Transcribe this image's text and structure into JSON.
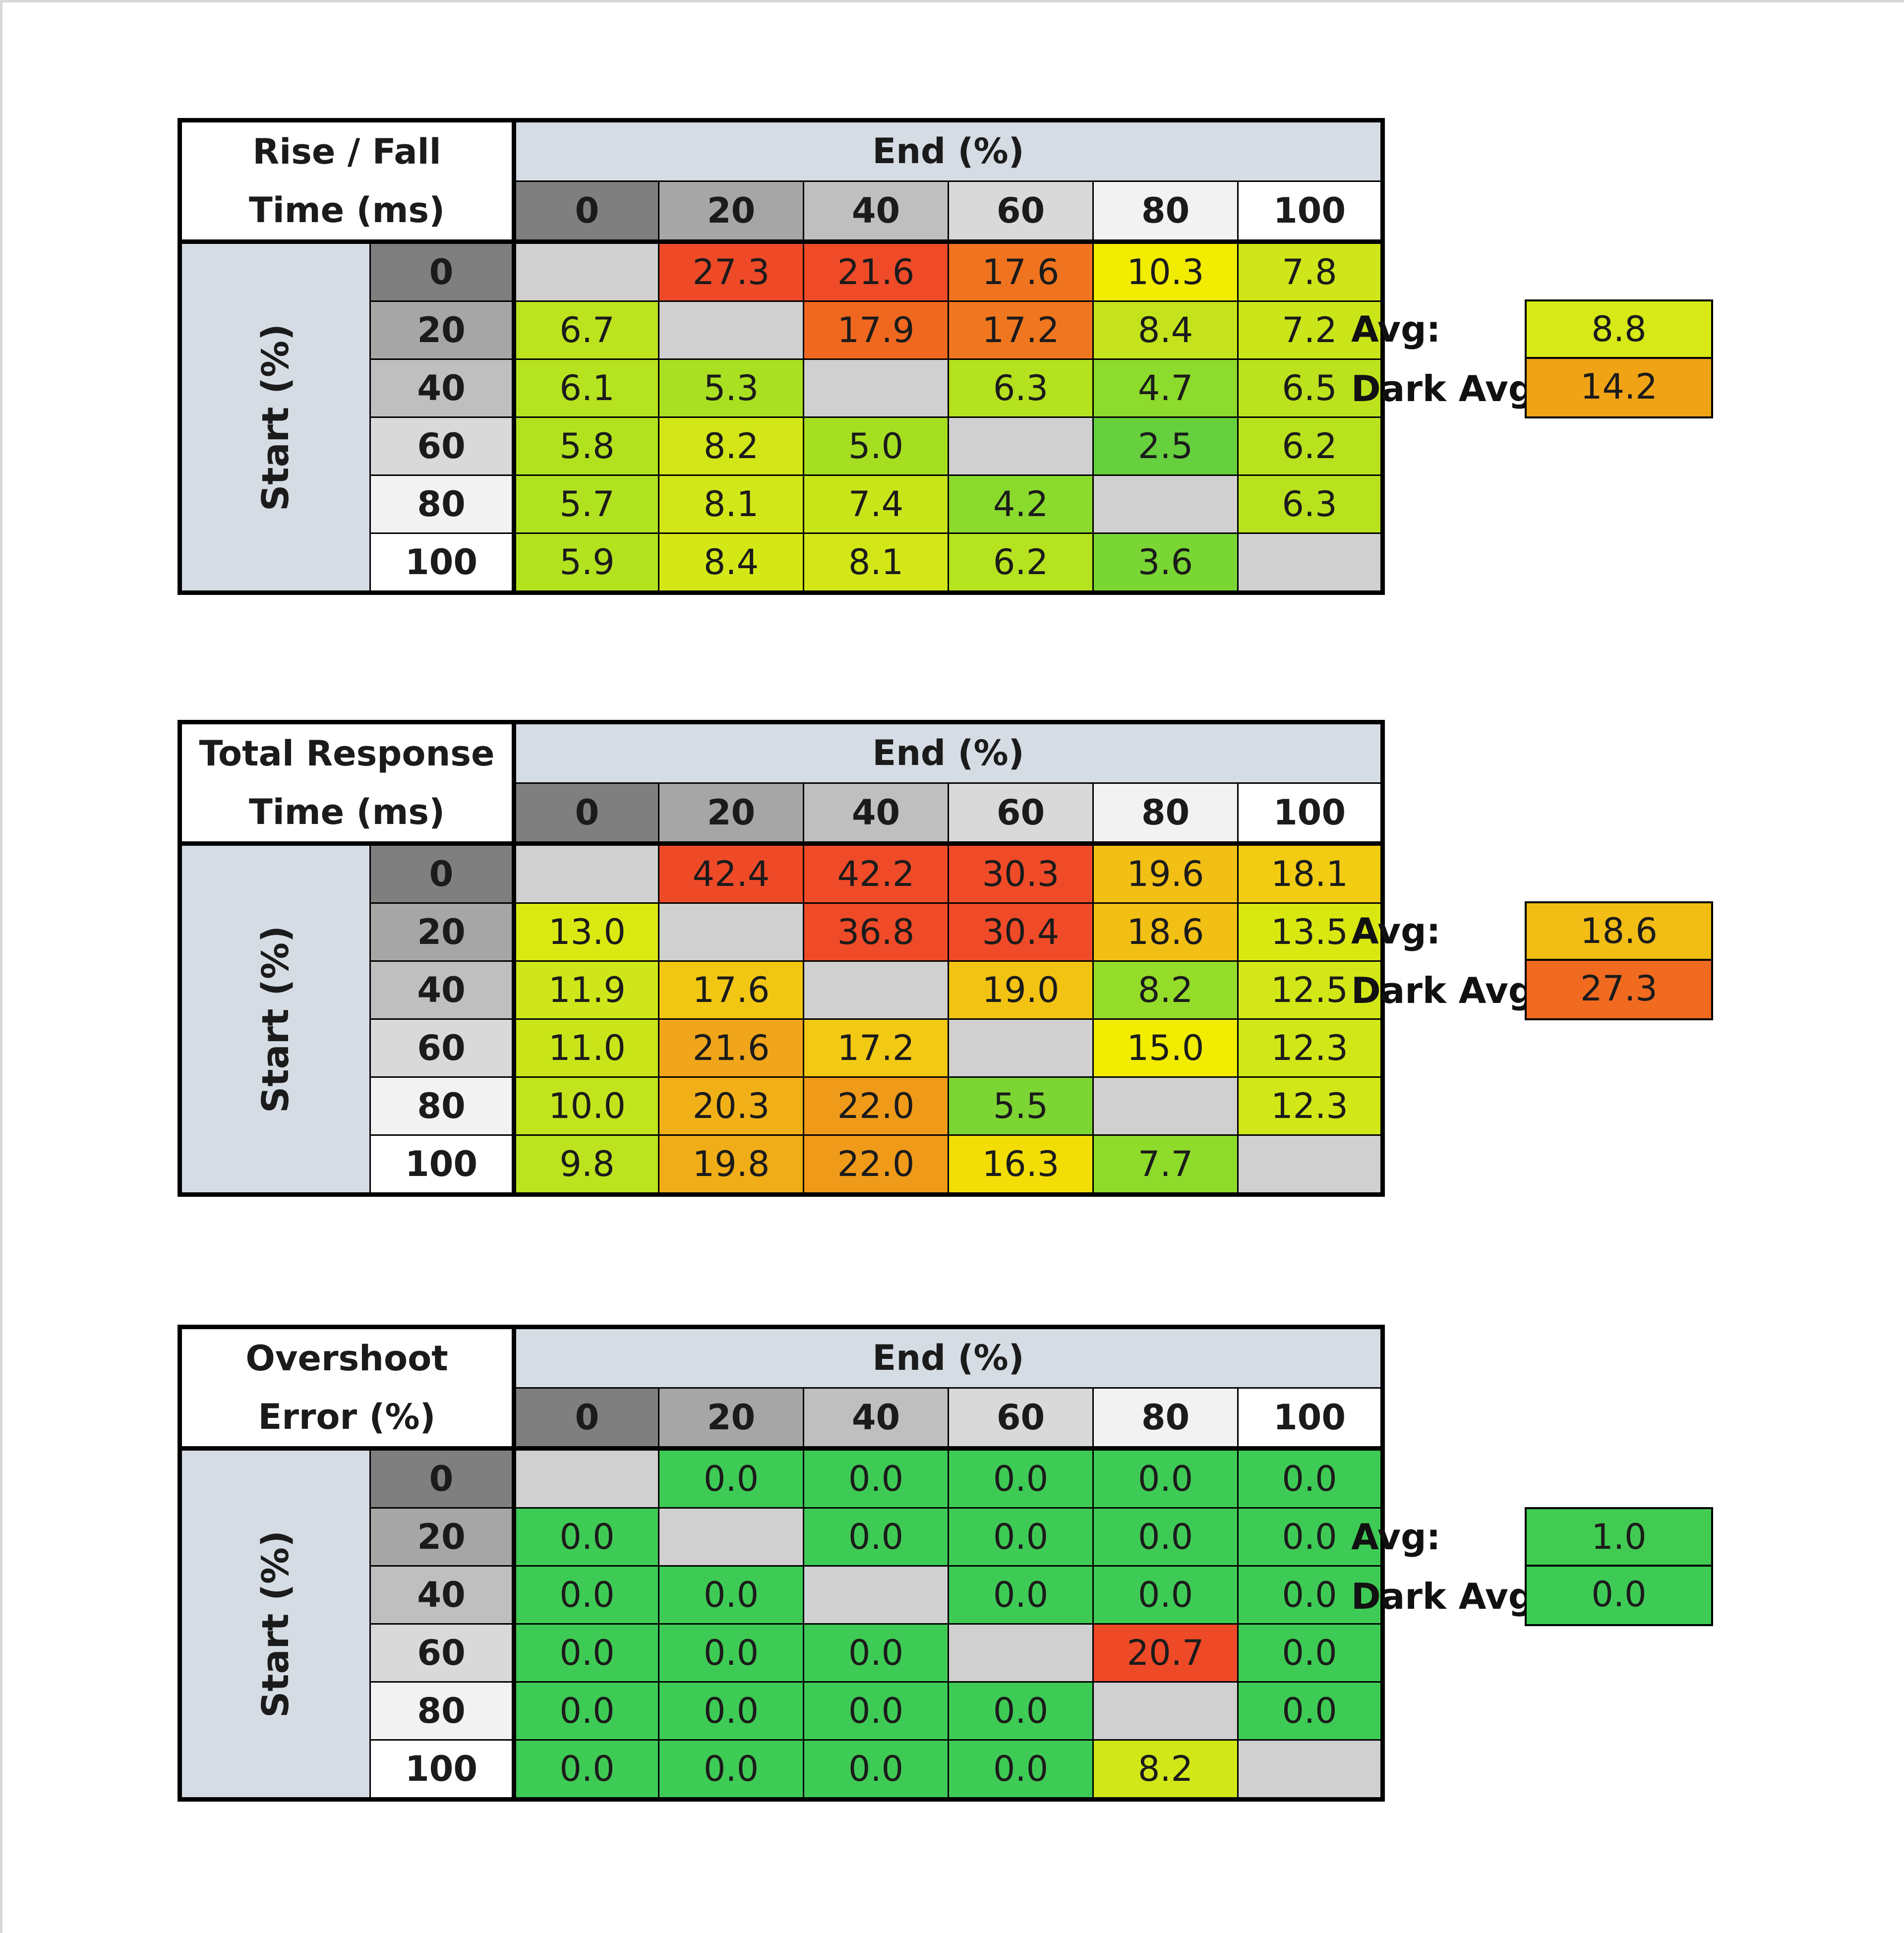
{
  "chart_data": [
    {
      "type": "heatmap",
      "title_lines": [
        "Rise / Fall",
        "Time (ms)"
      ],
      "xlabel": "End (%)",
      "ylabel": "Start (%)",
      "columns": [
        "0",
        "20",
        "40",
        "60",
        "80",
        "100"
      ],
      "rows": [
        "0",
        "20",
        "40",
        "60",
        "80",
        "100"
      ],
      "values": [
        [
          "",
          "27.3",
          "21.6",
          "17.6",
          "10.3",
          "7.8"
        ],
        [
          "6.7",
          "",
          "17.9",
          "17.2",
          "8.4",
          "7.2"
        ],
        [
          "6.1",
          "5.3",
          "",
          "6.3",
          "4.7",
          "6.5"
        ],
        [
          "5.8",
          "8.2",
          "5.0",
          "",
          "2.5",
          "6.2"
        ],
        [
          "5.7",
          "8.1",
          "7.4",
          "4.2",
          "",
          "6.3"
        ],
        [
          "5.9",
          "8.4",
          "8.1",
          "6.2",
          "3.6",
          ""
        ]
      ],
      "colors": [
        [
          "#d0d0d0",
          "#ee4a28",
          "#ef4b28",
          "#f0741f",
          "#f1ec00",
          "#cfe61a"
        ],
        [
          "#bce31e",
          "#d0d0d0",
          "#f0681f",
          "#f0771f",
          "#c5e31c",
          "#cae51a"
        ],
        [
          "#b6e31f",
          "#a9e022",
          "#d0d0d0",
          "#b4e21e",
          "#8ddb2c",
          "#bce21e"
        ],
        [
          "#b2e21e",
          "#d3e718",
          "#a6df22",
          "#d0d0d0",
          "#66d03e",
          "#b9e21e"
        ],
        [
          "#b1e220",
          "#d1e717",
          "#c8e51a",
          "#8bda2e",
          "#d0d0d0",
          "#b9e21e"
        ],
        [
          "#b3e21f",
          "#d5e817",
          "#d3e718",
          "#b5e31f",
          "#7ad634",
          "#d0d0d0"
        ]
      ],
      "summary": [
        {
          "label": "Avg:",
          "value": "8.8",
          "color": "#d7e917"
        },
        {
          "label": "Dark Avg:",
          "value": "14.2",
          "color": "#f0a315"
        }
      ]
    },
    {
      "type": "heatmap",
      "title_lines": [
        "Total Response",
        "Time (ms)"
      ],
      "xlabel": "End (%)",
      "ylabel": "Start (%)",
      "columns": [
        "0",
        "20",
        "40",
        "60",
        "80",
        "100"
      ],
      "rows": [
        "0",
        "20",
        "40",
        "60",
        "80",
        "100"
      ],
      "values": [
        [
          "",
          "42.4",
          "42.2",
          "30.3",
          "19.6",
          "18.1"
        ],
        [
          "13.0",
          "",
          "36.8",
          "30.4",
          "18.6",
          "13.5"
        ],
        [
          "11.9",
          "17.6",
          "",
          "19.0",
          "8.2",
          "12.5"
        ],
        [
          "11.0",
          "21.6",
          "17.2",
          "",
          "15.0",
          "12.3"
        ],
        [
          "10.0",
          "20.3",
          "22.0",
          "5.5",
          "",
          "12.3"
        ],
        [
          "9.8",
          "19.8",
          "22.0",
          "16.3",
          "7.7",
          ""
        ]
      ],
      "colors": [
        [
          "#d0d0d0",
          "#ee4a28",
          "#ef4b28",
          "#ef4b28",
          "#f2bf14",
          "#f2cc12"
        ],
        [
          "#dbe912",
          "#d0d0d0",
          "#ef4b28",
          "#ef4b28",
          "#f2bf14",
          "#dae812"
        ],
        [
          "#cfe61a",
          "#f2c713",
          "#d0d0d0",
          "#f2c313",
          "#96dc2a",
          "#d3e718"
        ],
        [
          "#c9e519",
          "#f0a51a",
          "#f2c913",
          "#d0d0d0",
          "#f1ec00",
          "#d1e717"
        ],
        [
          "#c1e41c",
          "#f2b018",
          "#f09a1a",
          "#7dd533",
          "#d0d0d0",
          "#d1e717"
        ],
        [
          "#bce31e",
          "#f0ad17",
          "#f09a1a",
          "#f2de06",
          "#8fdb2c",
          "#d0d0d0"
        ]
      ],
      "summary": [
        {
          "label": "Avg:",
          "value": "18.6",
          "color": "#f2bd14"
        },
        {
          "label": "Dark Avg:",
          "value": "27.3",
          "color": "#f06a20"
        }
      ]
    },
    {
      "type": "heatmap",
      "title_lines": [
        "Overshoot",
        "Error (%)"
      ],
      "xlabel": "End (%)",
      "ylabel": "Start (%)",
      "columns": [
        "0",
        "20",
        "40",
        "60",
        "80",
        "100"
      ],
      "rows": [
        "0",
        "20",
        "40",
        "60",
        "80",
        "100"
      ],
      "values": [
        [
          "",
          "0.0",
          "0.0",
          "0.0",
          "0.0",
          "0.0"
        ],
        [
          "0.0",
          "",
          "0.0",
          "0.0",
          "0.0",
          "0.0"
        ],
        [
          "0.0",
          "0.0",
          "",
          "0.0",
          "0.0",
          "0.0"
        ],
        [
          "0.0",
          "0.0",
          "0.0",
          "",
          "20.7",
          "0.0"
        ],
        [
          "0.0",
          "0.0",
          "0.0",
          "0.0",
          "",
          "0.0"
        ],
        [
          "0.0",
          "0.0",
          "0.0",
          "0.0",
          "8.2",
          ""
        ]
      ],
      "colors": [
        [
          "#d0d0d0",
          "#3ecb55",
          "#3ecb55",
          "#3ecb55",
          "#3ecb55",
          "#3ecb55"
        ],
        [
          "#3ecb55",
          "#d0d0d0",
          "#3ecb55",
          "#3ecb55",
          "#3ecb55",
          "#3ecb55"
        ],
        [
          "#3ecb55",
          "#3ecb55",
          "#d0d0d0",
          "#3ecb55",
          "#3ecb55",
          "#3ecb55"
        ],
        [
          "#3ecb55",
          "#3ecb55",
          "#3ecb55",
          "#d0d0d0",
          "#ee4a28",
          "#3ecb55"
        ],
        [
          "#3ecb55",
          "#3ecb55",
          "#3ecb55",
          "#3ecb55",
          "#d0d0d0",
          "#3ecb55"
        ],
        [
          "#3ecb55",
          "#3ecb55",
          "#3ecb55",
          "#3ecb55",
          "#d2e718",
          "#d0d0d0"
        ]
      ],
      "summary": [
        {
          "label": "Avg:",
          "value": "1.0",
          "color": "#41cb52"
        },
        {
          "label": "Dark Avg:",
          "value": "0.0",
          "color": "#3ecb55"
        }
      ]
    }
  ],
  "header_shades": [
    "#7f7f7f",
    "#a6a6a6",
    "#bfbfbf",
    "#d9d9d9",
    "#f2f2f2",
    "#ffffff"
  ]
}
